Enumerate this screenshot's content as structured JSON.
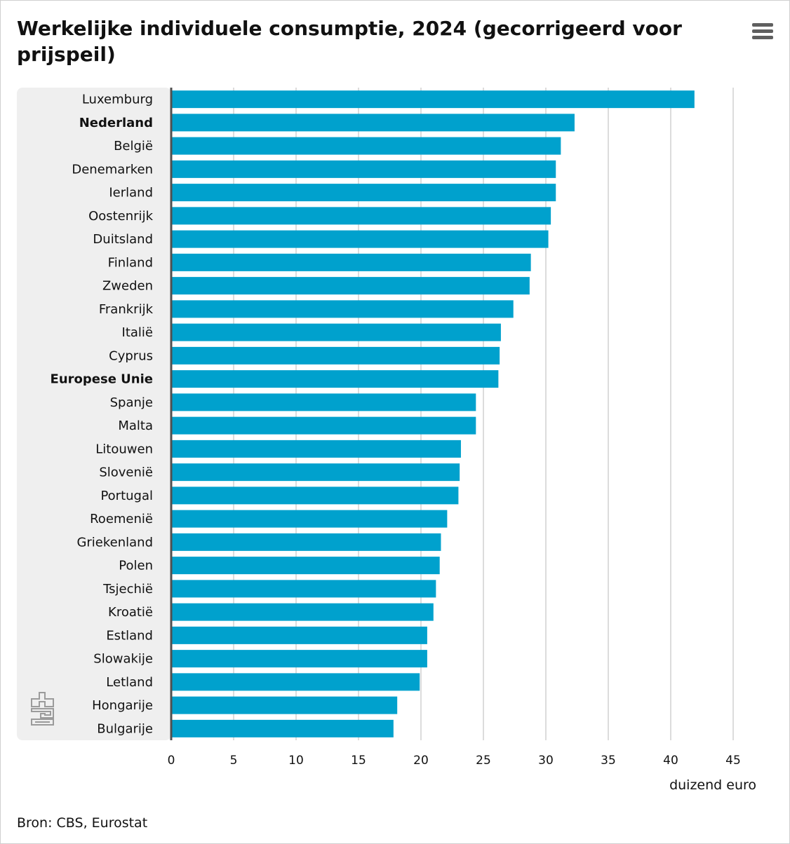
{
  "title": "Werkelijke individuele consumptie, 2024 (gecorrigeerd voor prijspeil)",
  "menu": {
    "icon": "hamburger-menu-icon"
  },
  "source": "Bron: CBS, Eurostat",
  "logo": {
    "icon": "cbs-logo-icon",
    "text": "cbs"
  },
  "colors": {
    "bar": "#00a1cd",
    "background_panel": "#efefef",
    "axis": "#505050",
    "grid": "#d0d0d0"
  },
  "chart_data": {
    "type": "bar",
    "orientation": "horizontal",
    "title": "Werkelijke individuele consumptie, 2024 (gecorrigeerd voor prijspeil)",
    "xlabel": "duizend euro",
    "ylabel": "",
    "xlim": [
      0,
      45
    ],
    "xticks": [
      0,
      5,
      10,
      15,
      20,
      25,
      30,
      35,
      40,
      45
    ],
    "grid": true,
    "legend": "none",
    "categories": [
      "Luxemburg",
      "Nederland",
      "België",
      "Denemarken",
      "Ierland",
      "Oostenrijk",
      "Duitsland",
      "Finland",
      "Zweden",
      "Frankrijk",
      "Italië",
      "Cyprus",
      "Europese Unie",
      "Spanje",
      "Malta",
      "Litouwen",
      "Slovenië",
      "Portugal",
      "Roemenië",
      "Griekenland",
      "Polen",
      "Tsjechië",
      "Kroatië",
      "Estland",
      "Slowakije",
      "Letland",
      "Hongarije",
      "Bulgarije"
    ],
    "highlighted_categories": [
      "Nederland",
      "Europese Unie"
    ],
    "values": [
      41.9,
      32.3,
      31.2,
      30.8,
      30.8,
      30.4,
      30.2,
      28.8,
      28.7,
      27.4,
      26.4,
      26.3,
      26.2,
      24.4,
      24.4,
      23.2,
      23.1,
      23.0,
      22.1,
      21.6,
      21.5,
      21.2,
      21.0,
      20.5,
      20.5,
      19.9,
      18.1,
      17.8
    ]
  }
}
